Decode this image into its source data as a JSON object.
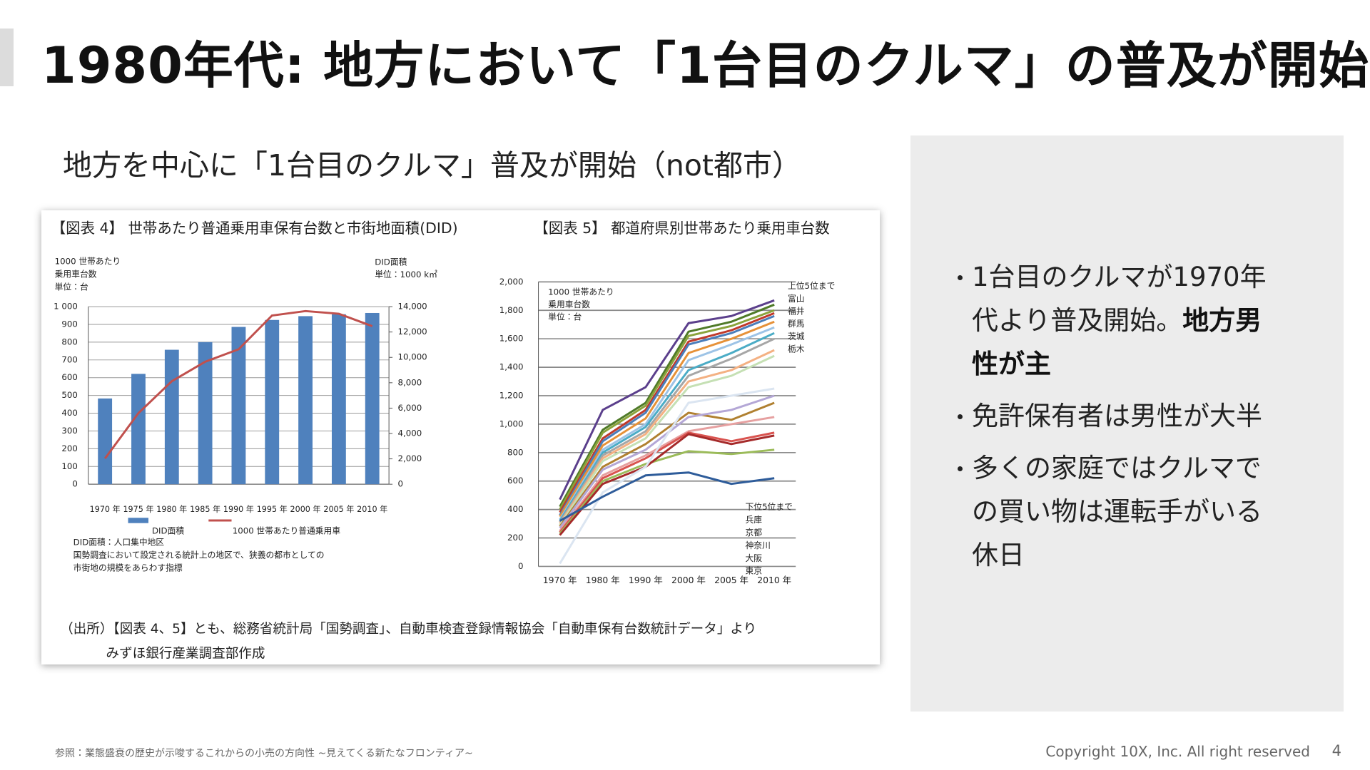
{
  "title": "1980年代: 地方において「1台目のクルマ」の普及が開始",
  "subtitle": "地方を中心に「1台目のクルマ」普及が開始（not都市）",
  "chart_data": [
    {
      "type": "bar-line",
      "title": "【図表 4】 世帯あたり普通乗用車保有台数と市街地面積(DID)",
      "ylabel": [
        "1000 世帯あたり",
        "乗用車台数",
        "単位：台"
      ],
      "y2label": [
        "DID面積",
        "単位：1000 k㎡"
      ],
      "categories": [
        "1970 年",
        "1975 年",
        "1980 年",
        "1985 年",
        "1990 年",
        "1995 年",
        "2000 年",
        "2005 年",
        "2010 年"
      ],
      "series": [
        {
          "name": "DID面積",
          "type": "bar",
          "axis": "y2",
          "color": "#4f81bd",
          "values": [
            6760,
            8700,
            10600,
            11200,
            12400,
            12950,
            13250,
            13400,
            13500
          ]
        },
        {
          "name": "1000 世帯あたり普通乗用車",
          "type": "line",
          "color": "#c0504d",
          "values": [
            145,
            400,
            580,
            690,
            760,
            950,
            975,
            960,
            890
          ]
        }
      ],
      "ylim": [
        0,
        1000
      ],
      "yticks": [
        0,
        100,
        200,
        300,
        400,
        500,
        600,
        700,
        800,
        900,
        {
          "value": 1000,
          "label": "1 000"
        }
      ],
      "y2lim": [
        0,
        14000
      ],
      "y2ticks": [
        0,
        {
          "value": 2000,
          "label": "2,000"
        },
        {
          "value": 4000,
          "label": "4,000"
        },
        {
          "value": 6000,
          "label": "6,000"
        },
        {
          "value": 8000,
          "label": "8,000"
        },
        {
          "value": 10000,
          "label": "10,000"
        },
        {
          "value": 12000,
          "label": "12,000"
        },
        {
          "value": 14000,
          "label": "14,000"
        }
      ],
      "grid": true,
      "notes": [
        "DID面積：人口集中地区",
        "国勢調査において設定される統計上の地区で、狭義の都市としての",
        "市街地の規模をあらわす指標"
      ]
    },
    {
      "type": "line",
      "title": "【図表 5】 都道府県別世帯あたり乗用車台数",
      "ylabel": [
        "1000 世帯あたり",
        "乗用車台数",
        "単位：台"
      ],
      "categories": [
        "1970 年",
        "1980 年",
        "1990 年",
        "2000 年",
        "2005 年",
        "2010 年"
      ],
      "series": [
        {
          "color": "#5b3f8c",
          "values": [
            470,
            1100,
            1260,
            1710,
            1760,
            1870
          ]
        },
        {
          "color": "#4f7a28",
          "values": [
            420,
            960,
            1150,
            1650,
            1720,
            1840
          ]
        },
        {
          "color": "#8aa33b",
          "values": [
            400,
            940,
            1130,
            1620,
            1690,
            1800
          ]
        },
        {
          "color": "#c0392b",
          "values": [
            380,
            900,
            1100,
            1580,
            1660,
            1780
          ]
        },
        {
          "color": "#4a7ebb",
          "values": [
            360,
            880,
            1080,
            1560,
            1640,
            1760
          ]
        },
        {
          "color": "#e69138",
          "values": [
            350,
            850,
            1040,
            1500,
            1600,
            1720
          ]
        },
        {
          "color": "#9dc3e6",
          "values": [
            330,
            820,
            1000,
            1450,
            1560,
            1680
          ]
        },
        {
          "color": "#4bacc6",
          "values": [
            320,
            800,
            980,
            1380,
            1500,
            1640
          ]
        },
        {
          "color": "#a6a6a6",
          "values": [
            310,
            780,
            950,
            1340,
            1460,
            1600
          ]
        },
        {
          "color": "#f4b183",
          "values": [
            300,
            760,
            930,
            1300,
            1380,
            1520
          ]
        },
        {
          "color": "#c5e0b4",
          "values": [
            290,
            740,
            900,
            1260,
            1340,
            1480
          ]
        },
        {
          "color": "#b08030",
          "values": [
            280,
            700,
            860,
            1080,
            1030,
            1150
          ]
        },
        {
          "color": "#b4a7d6",
          "values": [
            270,
            680,
            820,
            1050,
            1100,
            1200
          ]
        },
        {
          "color": "#e6a0a0",
          "values": [
            250,
            640,
            780,
            950,
            1000,
            1050
          ]
        },
        {
          "color": "#d9534f",
          "values": [
            240,
            620,
            760,
            940,
            880,
            940
          ]
        },
        {
          "color": "#9bbb59",
          "values": [
            230,
            600,
            720,
            810,
            790,
            820
          ]
        },
        {
          "color": "#a52a2a",
          "values": [
            220,
            580,
            700,
            930,
            860,
            920
          ]
        },
        {
          "color": "#dbe5f1",
          "values": [
            20,
            520,
            700,
            1150,
            1200,
            1250
          ]
        },
        {
          "color": "#2e5c9a",
          "values": [
            320,
            490,
            640,
            660,
            580,
            620
          ]
        }
      ],
      "ylim": [
        0,
        2000
      ],
      "yticks": [
        0,
        200,
        400,
        600,
        800,
        {
          "value": 1000,
          "label": "1,000"
        },
        {
          "value": 1200,
          "label": "1,200"
        },
        {
          "value": 1400,
          "label": "1,400"
        },
        {
          "value": 1600,
          "label": "1,600"
        },
        {
          "value": 1800,
          "label": "1,800"
        },
        {
          "value": 2000,
          "label": "2,000"
        }
      ],
      "grid": true,
      "top_annotation": [
        "上位5位まで",
        "富山",
        "福井",
        "群馬",
        "茨城",
        "栃木"
      ],
      "bottom_annotation": [
        "下位5位まで",
        "兵庫",
        "京都",
        "神奈川",
        "大阪",
        "東京"
      ]
    }
  ],
  "source": [
    "（出所）【図表 4、5】とも、総務省統計局「国勢調査」、自動車検査登録情報協会「自動車保有台数統計データ」より",
    "みずほ銀行産業調査部作成"
  ],
  "bullets": [
    {
      "text": "1台目のクルマが1970年代より普及開始。",
      "bold": "地方男性が主"
    },
    {
      "text": "免許保有者は男性が大半"
    },
    {
      "text": "多くの家庭ではクルマでの買い物は運転手がいる休日"
    }
  ],
  "footer": {
    "reference": "参照：業態盛衰の歴史が示唆するこれからの小売の方向性 ~見えてくる新たなフロンティア~",
    "copyright": "Copyright 10X, Inc. All right reserved",
    "page": "4"
  }
}
